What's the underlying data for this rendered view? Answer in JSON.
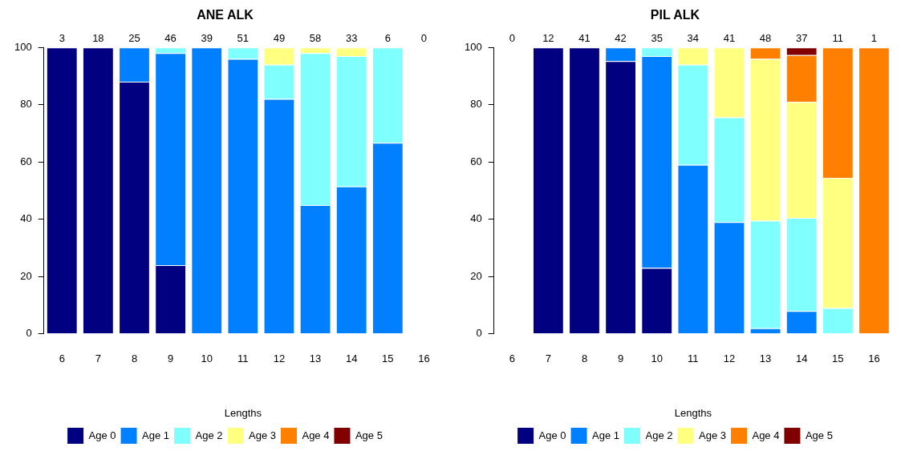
{
  "chart_data": [
    {
      "type": "bar",
      "title": "ANE ALK",
      "xlabel": "Lengths",
      "categories": [
        "6",
        "7",
        "8",
        "9",
        "10",
        "11",
        "12",
        "13",
        "14",
        "15",
        "16"
      ],
      "stacked": true,
      "legend": "bottom",
      "ylim": [
        0,
        100
      ],
      "yticks": [
        0,
        20,
        40,
        60,
        80,
        100
      ],
      "annotations": [
        "3",
        "18",
        "25",
        "46",
        "39",
        "51",
        "49",
        "58",
        "33",
        "6",
        "0"
      ],
      "series": [
        {
          "name": "Age 0",
          "color": "#000080",
          "values": [
            100,
            100,
            88,
            24,
            null,
            null,
            null,
            null,
            null,
            null,
            null
          ]
        },
        {
          "name": "Age 1",
          "color": "#0080ff",
          "values": [
            null,
            null,
            12,
            74,
            100,
            96,
            82,
            45,
            51.5,
            66.7,
            null
          ]
        },
        {
          "name": "Age 2",
          "color": "#80ffff",
          "values": [
            null,
            null,
            null,
            2,
            null,
            4,
            12,
            53,
            45.5,
            33.3,
            null
          ]
        },
        {
          "name": "Age 3",
          "color": "#ffff80",
          "values": [
            null,
            null,
            null,
            null,
            null,
            null,
            6,
            2,
            3,
            null,
            null
          ]
        },
        {
          "name": "Age 4",
          "color": "#ff8000",
          "values": [
            null,
            null,
            null,
            null,
            null,
            null,
            null,
            null,
            null,
            null,
            null
          ]
        },
        {
          "name": "Age 5",
          "color": "#800000",
          "values": [
            null,
            null,
            null,
            null,
            null,
            null,
            null,
            null,
            null,
            null,
            null
          ]
        }
      ]
    },
    {
      "type": "bar",
      "title": "PIL ALK",
      "xlabel": "Lengths",
      "categories": [
        "6",
        "7",
        "8",
        "9",
        "10",
        "11",
        "12",
        "13",
        "14",
        "15",
        "16"
      ],
      "stacked": true,
      "legend": "bottom",
      "ylim": [
        0,
        100
      ],
      "yticks": [
        0,
        20,
        40,
        60,
        80,
        100
      ],
      "annotations": [
        "0",
        "12",
        "41",
        "42",
        "35",
        "34",
        "41",
        "48",
        "37",
        "11",
        "1"
      ],
      "series": [
        {
          "name": "Age 0",
          "color": "#000080",
          "values": [
            null,
            100,
            100,
            95.2,
            23,
            null,
            null,
            null,
            null,
            null,
            null
          ]
        },
        {
          "name": "Age 1",
          "color": "#0080ff",
          "values": [
            null,
            null,
            null,
            4.8,
            74,
            59,
            39,
            2,
            8,
            null,
            null
          ]
        },
        {
          "name": "Age 2",
          "color": "#80ffff",
          "values": [
            null,
            null,
            null,
            null,
            3,
            35,
            36.6,
            37.5,
            32.5,
            9,
            null
          ]
        },
        {
          "name": "Age 3",
          "color": "#ffff80",
          "values": [
            null,
            null,
            null,
            null,
            null,
            6,
            24.4,
            56.5,
            40.5,
            45.5,
            null
          ]
        },
        {
          "name": "Age 4",
          "color": "#ff8000",
          "values": [
            null,
            null,
            null,
            null,
            null,
            null,
            null,
            4,
            16.3,
            45.5,
            100
          ]
        },
        {
          "name": "Age 5",
          "color": "#800000",
          "values": [
            null,
            null,
            null,
            null,
            null,
            null,
            null,
            null,
            2.7,
            null,
            null
          ]
        }
      ]
    }
  ]
}
